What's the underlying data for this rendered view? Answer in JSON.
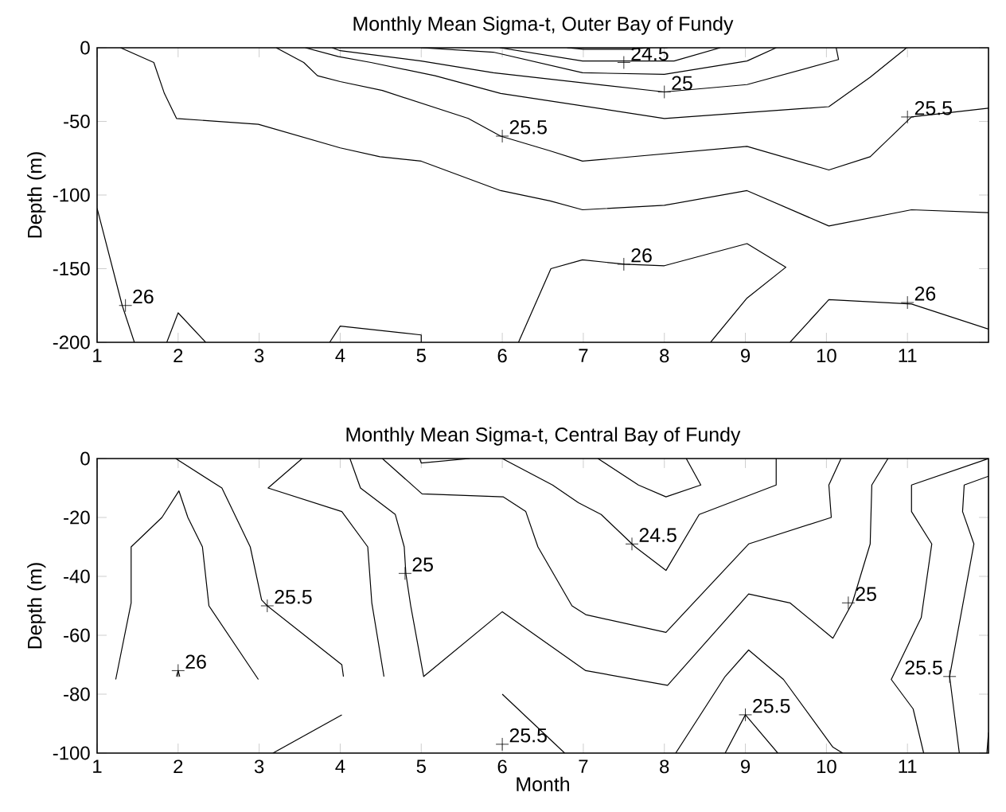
{
  "chart_data": [
    {
      "type": "line",
      "title": "Monthly Mean Sigma-t, Outer Bay of Fundy",
      "ylabel": "Depth (m)",
      "xlim": [
        1,
        12
      ],
      "xticks": [
        1,
        2,
        3,
        4,
        5,
        6,
        7,
        8,
        9,
        10,
        11
      ],
      "ylim": [
        -200,
        0
      ],
      "yticks": [
        -200,
        -150,
        -100,
        -50,
        0
      ],
      "series": [
        {
          "color": "#000000",
          "x": [
            1.29,
            1.7,
            1.83,
            1.98,
            2.99,
            4.0,
            4.49,
            5.0,
            5.98,
            6.59,
            6.99,
            8.0,
            9.02,
            10.03,
            11.05,
            12
          ],
          "values": [
            0,
            -10,
            -31,
            -48,
            -52,
            -68,
            -74,
            -77,
            -97,
            -104,
            -110,
            -107,
            -97,
            -121,
            -110,
            -112
          ]
        },
        {
          "color": "#000000",
          "x": [
            3.21,
            3.55,
            3.72,
            4.0,
            4.52,
            5.58,
            5.98,
            6.59,
            6.99,
            9.02,
            10.03,
            10.54,
            11.05,
            12
          ],
          "values": [
            0,
            -10,
            -19,
            -23,
            -29,
            -48,
            -60,
            -70,
            -77,
            -67,
            -83,
            -74,
            -47,
            -41
          ]
        },
        {
          "color": "#000000",
          "x": [
            3.57,
            3.98,
            4.38,
            5.17,
            5.98,
            8.0,
            10.03,
            10.54,
            10.99
          ],
          "values": [
            0,
            -6,
            -10,
            -19,
            -31,
            -48,
            -40,
            -20,
            0
          ]
        },
        {
          "color": "#000000",
          "x": [
            3.9,
            4.0,
            5.0,
            5.89,
            8.0,
            9.02,
            10.15,
            10.12
          ],
          "values": [
            0,
            -2,
            -9,
            -17,
            -30,
            -25,
            -8,
            0
          ]
        },
        {
          "color": "#000000",
          "x": [
            5.0,
            5.89,
            6.99,
            8.0,
            9.02,
            9.38
          ],
          "values": [
            0,
            -3,
            -17,
            -18,
            -9,
            0
          ]
        },
        {
          "color": "#000000",
          "x": [
            5.97,
            6.99,
            7.51,
            8.12,
            8.69
          ],
          "values": [
            0,
            -9,
            -9,
            -9,
            0
          ]
        },
        {
          "color": "#000000",
          "x": [
            6.8,
            7.0,
            7.6,
            7.8
          ],
          "values": [
            0,
            -1,
            -1,
            0
          ]
        },
        {
          "color": "#000000",
          "x": [
            1.0,
            1.31,
            1.46
          ],
          "values": [
            -109,
            -175,
            -200
          ]
        },
        {
          "color": "#000000",
          "x": [
            1.86,
            2.0,
            2.34
          ],
          "values": [
            -200,
            -180,
            -200
          ]
        },
        {
          "color": "#000000",
          "x": [
            3.87,
            4.0,
            5.0,
            5.0
          ],
          "values": [
            -200,
            -189,
            -195,
            -200
          ]
        },
        {
          "color": "#000000",
          "x": [
            6.2,
            6.6,
            6.99,
            7.51,
            8.0,
            9.02,
            9.5,
            9.02,
            8.57
          ],
          "values": [
            -200,
            -150,
            -144,
            -147,
            -148,
            -133,
            -149,
            -170,
            -200
          ]
        },
        {
          "color": "#000000",
          "x": [
            9.55,
            10.03,
            11.05,
            12
          ],
          "values": [
            -200,
            -171,
            -174,
            -191
          ]
        }
      ],
      "annotations": [
        {
          "text": "24.5",
          "x": 7.5,
          "y": -10
        },
        {
          "text": "25",
          "x": 8,
          "y": -30
        },
        {
          "text": "25.5",
          "x": 6,
          "y": -60
        },
        {
          "text": "25.5",
          "x": 11,
          "y": -47
        },
        {
          "text": "26",
          "x": 1.35,
          "y": -175
        },
        {
          "text": "26",
          "x": 7.5,
          "y": -147
        },
        {
          "text": "26",
          "x": 11,
          "y": -173
        }
      ]
    },
    {
      "type": "line",
      "title": "Monthly Mean Sigma-t, Central Bay of Fundy",
      "xlabel": "Month",
      "ylabel": "Depth (m)",
      "xlim": [
        1,
        12
      ],
      "xticks": [
        1,
        2,
        3,
        4,
        5,
        6,
        7,
        8,
        9,
        10,
        11
      ],
      "ylim": [
        -100,
        0
      ],
      "yticks": [
        -100,
        -80,
        -60,
        -40,
        -20,
        0
      ],
      "series": [
        {
          "color": "#000000",
          "x": [
            1.23,
            1.42,
            1.42,
            1.8,
            2.01,
            2.12,
            2.3,
            2.38,
            2.99
          ],
          "values": [
            -75,
            -49,
            -30,
            -20,
            -11,
            -20,
            -30,
            -50,
            -75
          ]
        },
        {
          "color": "#000000",
          "x": [
            1.97,
            2.54,
            2.89,
            3.03,
            3.1,
            4.02,
            4.04
          ],
          "values": [
            0,
            -10,
            -30,
            -48,
            -50,
            -70,
            -74
          ]
        },
        {
          "color": "#000000",
          "x": [
            3.53,
            3.11,
            4.02,
            4.34,
            4.39,
            4.54
          ],
          "values": [
            0,
            -10,
            -18,
            -30,
            -49,
            -74
          ]
        },
        {
          "color": "#000000",
          "x": [
            4.12,
            4.25,
            4.68,
            4.79,
            4.81,
            4.87,
            5.03,
            6.0,
            7.03,
            8.04,
            9.04,
            9.55,
            10.08,
            10.32,
            10.54,
            10.56,
            10.76
          ],
          "values": [
            0,
            -10,
            -19,
            -30,
            -39,
            -50,
            -74,
            -52,
            -72,
            -77,
            -46,
            -49,
            -61,
            -49,
            -29,
            -9,
            0
          ]
        },
        {
          "color": "#000000",
          "x": [
            4.52,
            5.01,
            6.01,
            6.29,
            6.44,
            6.86,
            7.03,
            8.02,
            9.04,
            10.06,
            10.03,
            10.18
          ],
          "values": [
            0,
            -12,
            -13,
            -18,
            -30,
            -50,
            -53,
            -59,
            -29,
            -20,
            -9,
            0
          ]
        },
        {
          "color": "#000000",
          "x": [
            6.0,
            6.62,
            6.94,
            7.22,
            7.64,
            8.02,
            8.43,
            9.38,
            9.38
          ],
          "values": [
            0,
            -9,
            -15,
            -19,
            -30,
            -38,
            -19,
            -9,
            0
          ]
        },
        {
          "color": "#000000",
          "x": [
            7.18,
            7.68,
            8.02,
            8.45,
            8.27
          ],
          "values": [
            0,
            -9,
            -13,
            -9,
            0
          ]
        },
        {
          "color": "#000000",
          "x": [
            4.98,
            5.0,
            5.6
          ],
          "values": [
            0,
            -1.5,
            0
          ]
        },
        {
          "color": "#000000",
          "x": [
            8.14,
            8.75,
            9.04,
            9.47,
            10.08,
            10.2
          ],
          "values": [
            -100,
            -74,
            -65,
            -75,
            -98,
            -100
          ]
        },
        {
          "color": "#000000",
          "x": [
            8.75,
            9.0,
            9.4
          ],
          "values": [
            -100,
            -87,
            -100
          ]
        },
        {
          "color": "#000000",
          "x": [
            1.98,
            2.0,
            2.02
          ],
          "values": [
            -74,
            -72,
            -74
          ]
        },
        {
          "color": "#000000",
          "x": [
            6.0,
            6.77
          ],
          "values": [
            -80,
            -100
          ]
        },
        {
          "color": "#000000",
          "x": [
            3.17,
            4.02
          ],
          "values": [
            -100,
            -87
          ]
        },
        {
          "color": "#000000",
          "x": [
            12,
            11.05,
            11.05,
            11.3,
            11.17,
            10.8,
            11.07,
            11.2
          ],
          "values": [
            0,
            -9,
            -18,
            -29,
            -54,
            -75,
            -85,
            -100
          ]
        },
        {
          "color": "#000000",
          "x": [
            12,
            11.7,
            11.68,
            11.82,
            11.52,
            11.64
          ],
          "values": [
            -6,
            -9,
            -18,
            -29,
            -74,
            -100
          ]
        },
        {
          "color": "#000000",
          "x": [
            11.98,
            12
          ],
          "values": [
            -100,
            -93
          ]
        }
      ],
      "annotations": [
        {
          "text": "26",
          "x": 2,
          "y": -72
        },
        {
          "text": "25.5",
          "x": 3.1,
          "y": -50
        },
        {
          "text": "25",
          "x": 4.8,
          "y": -39
        },
        {
          "text": "24.5",
          "x": 7.6,
          "y": -29
        },
        {
          "text": "25",
          "x": 10.27,
          "y": -49
        },
        {
          "text": "25.5",
          "x": 11.52,
          "y": -74
        },
        {
          "text": "25.5",
          "x": 9.0,
          "y": -87
        },
        {
          "text": "25.5",
          "x": 6,
          "y": -97
        }
      ]
    }
  ]
}
